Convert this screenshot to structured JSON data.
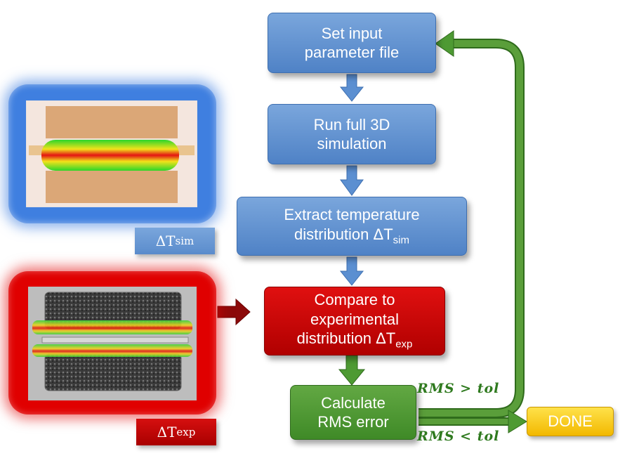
{
  "flow": {
    "step1": {
      "line1": "Set input",
      "line2": "parameter file"
    },
    "step2": {
      "line1": "Run full 3D",
      "line2": "simulation"
    },
    "step3": {
      "line1": "Extract temperature",
      "line2": "distribution ΔT",
      "sub": "sim"
    },
    "step4": {
      "line1": "Compare to",
      "line2": "experimental",
      "line3": "distribution ΔT",
      "sub": "exp"
    },
    "step5": {
      "line1": "Calculate",
      "line2": "RMS error"
    },
    "done": "DONE"
  },
  "conditions": {
    "loop": "RMS > tol",
    "finish": "RMS < tol"
  },
  "images": {
    "sim": {
      "label": "ΔT",
      "sub": "sim"
    },
    "exp": {
      "label": "ΔT",
      "sub": "exp"
    }
  },
  "colors": {
    "process_blue": "#5b8fd1",
    "compare_red": "#c00000",
    "calc_green": "#4e9a33",
    "done_yellow": "#f5c400",
    "arrow_green": "#3c7d22"
  }
}
